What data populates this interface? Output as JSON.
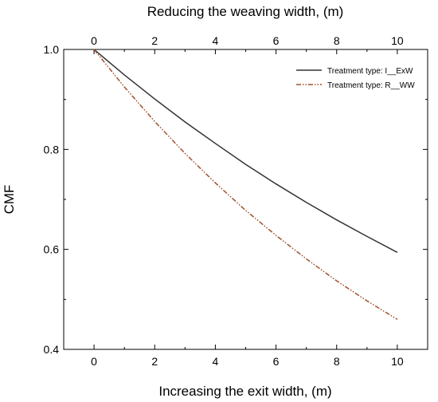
{
  "chart_data": {
    "type": "line",
    "x_bottom": {
      "label": "Increasing the exit width, (m)",
      "range": [
        -1,
        11
      ],
      "ticks": [
        0,
        2,
        4,
        6,
        8,
        10
      ]
    },
    "x_top": {
      "label": "Reducing the weaving width, (m)",
      "range": [
        -1,
        11
      ],
      "ticks": [
        0,
        2,
        4,
        6,
        8,
        10
      ]
    },
    "y": {
      "label": "CMF",
      "range": [
        0.4,
        1.0
      ],
      "ticks": [
        0.4,
        0.6,
        0.8,
        1.0
      ],
      "tick_labels": [
        "0.4",
        "0.6",
        "0.8",
        "1.0"
      ]
    },
    "series": [
      {
        "name": "Treatment type: I__ExW",
        "color": "#333333",
        "style": "solid",
        "x": [
          0,
          1,
          2,
          3,
          4,
          5,
          6,
          7,
          8,
          9,
          10
        ],
        "y": [
          1.0,
          0.949,
          0.901,
          0.855,
          0.812,
          0.77,
          0.731,
          0.694,
          0.659,
          0.626,
          0.594
        ]
      },
      {
        "name": "Treatment type: R__WW",
        "color": "#a0522d",
        "style": "dash-dot-dot",
        "x": [
          0,
          1,
          2,
          3,
          4,
          5,
          6,
          7,
          8,
          9,
          10
        ],
        "y": [
          1.0,
          0.925,
          0.856,
          0.792,
          0.733,
          0.678,
          0.628,
          0.581,
          0.537,
          0.497,
          0.46
        ]
      }
    ],
    "legend_position": "top-right",
    "grid": false
  }
}
